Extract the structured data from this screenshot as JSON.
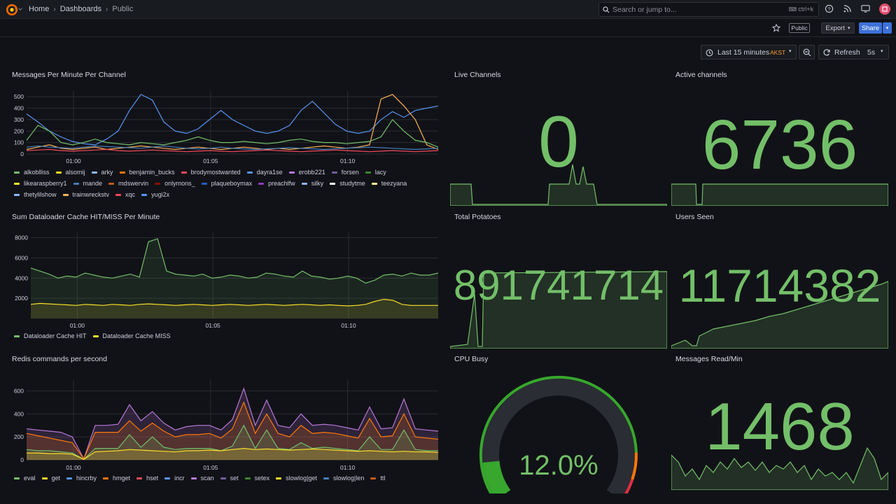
{
  "header": {
    "breadcrumbs": [
      "Home",
      "Dashboards",
      "Public"
    ],
    "search_placeholder": "Search or jump to...",
    "search_shortcut": "ctrl+k"
  },
  "toolbar": {
    "public_label": "Public",
    "export_label": "Export",
    "share_label": "Share",
    "time_range": "Last 15 minutes",
    "timezone": "AKST",
    "refresh_label": "Refresh",
    "refresh_interval": "5s"
  },
  "colors": {
    "green": "#73bf69",
    "yellow": "#fade2a",
    "accent_blue": "#3d71d9"
  },
  "panels": {
    "messages_per_minute": {
      "title": "Messages Per Minute Per Channel",
      "legend": [
        {
          "name": "alkoblliss",
          "color": "#73bf69"
        },
        {
          "name": "alsomij",
          "color": "#fade2a"
        },
        {
          "name": "arky",
          "color": "#8ab8ff"
        },
        {
          "name": "benjamin_bucks",
          "color": "#ff780a"
        },
        {
          "name": "brodymostwanted",
          "color": "#f2495c"
        },
        {
          "name": "dayra1se",
          "color": "#5794f2"
        },
        {
          "name": "erobb221",
          "color": "#b877d9"
        },
        {
          "name": "forsen",
          "color": "#705da0"
        },
        {
          "name": "lacy",
          "color": "#37872d"
        },
        {
          "name": "likearaspberry1",
          "color": "#fade2a"
        },
        {
          "name": "mande",
          "color": "#447ebc"
        },
        {
          "name": "mdswervin",
          "color": "#c15c17"
        },
        {
          "name": "onlymons_",
          "color": "#890f02"
        },
        {
          "name": "plaqueboymax",
          "color": "#1f60c4"
        },
        {
          "name": "preachlfw",
          "color": "#8f3bb8"
        },
        {
          "name": "silky",
          "color": "#8ab8ff"
        },
        {
          "name": "studytme",
          "color": "#ffffff"
        },
        {
          "name": "teezyana",
          "color": "#fff899"
        },
        {
          "name": "thetylilshow",
          "color": "#8ab8ff"
        },
        {
          "name": "trainwreckstv",
          "color": "#ffb357"
        },
        {
          "name": "xqc",
          "color": "#f2495c"
        },
        {
          "name": "yugi2x",
          "color": "#5794f2"
        }
      ]
    },
    "dataloader": {
      "title": "Sum Dataloader Cache HIT/MISS Per Minute",
      "legend": [
        {
          "name": "Dataloader Cache HIT",
          "color": "#73bf69"
        },
        {
          "name": "Dataloader Cache MISS",
          "color": "#fade2a"
        }
      ]
    },
    "redis": {
      "title": "Redis commands per second",
      "legend": [
        {
          "name": "eval",
          "color": "#73bf69"
        },
        {
          "name": "get",
          "color": "#fade2a"
        },
        {
          "name": "hincrby",
          "color": "#5794f2"
        },
        {
          "name": "hmget",
          "color": "#ff780a"
        },
        {
          "name": "hset",
          "color": "#f2495c"
        },
        {
          "name": "incr",
          "color": "#5794f2"
        },
        {
          "name": "scan",
          "color": "#b877d9"
        },
        {
          "name": "set",
          "color": "#705da0"
        },
        {
          "name": "setex",
          "color": "#37872d"
        },
        {
          "name": "slowlog|get",
          "color": "#fade2a"
        },
        {
          "name": "slowlog|len",
          "color": "#447ebc"
        },
        {
          "name": "ttl",
          "color": "#c15c17"
        }
      ]
    },
    "live_channels": {
      "title": "Live Channels",
      "value": "0"
    },
    "active_channels": {
      "title": "Active channels",
      "value": "6736"
    },
    "total_potatoes": {
      "title": "Total Potatoes",
      "value": "891741714"
    },
    "users_seen": {
      "title": "Users Seen",
      "value": "11714382"
    },
    "cpu_busy": {
      "title": "CPU Busy",
      "value": "12.0%",
      "fraction": 0.12
    },
    "messages_read": {
      "title": "Messages Read/Min",
      "value": "1468"
    }
  },
  "chart_data": [
    {
      "type": "line",
      "title": "Messages Per Minute Per Channel",
      "x_ticks": [
        "01:00",
        "01:05",
        "01:10"
      ],
      "y_ticks": [
        "0",
        "100",
        "200",
        "300",
        "400",
        "500"
      ],
      "ylim": [
        0,
        550
      ],
      "series": [
        {
          "name": "dayra1se",
          "values": [
            350,
            280,
            200,
            150,
            110,
            90,
            80,
            130,
            200,
            380,
            520,
            470,
            280,
            200,
            180,
            220,
            300,
            380,
            300,
            250,
            200,
            180,
            200,
            250,
            380,
            460,
            360,
            260,
            200,
            180,
            200,
            300,
            370,
            320,
            380,
            400,
            420
          ]
        },
        {
          "name": "trainwreckstv",
          "values": [
            40,
            60,
            80,
            50,
            40,
            50,
            60,
            40,
            50,
            60,
            70,
            60,
            50,
            40,
            50,
            60,
            50,
            40,
            50,
            60,
            50,
            40,
            50,
            40,
            50,
            60,
            70,
            60,
            50,
            60,
            80,
            480,
            520,
            420,
            300,
            80,
            40
          ]
        },
        {
          "name": "alkoblliss",
          "values": [
            120,
            250,
            200,
            100,
            80,
            100,
            130,
            100,
            90,
            80,
            100,
            90,
            80,
            100,
            120,
            150,
            120,
            100,
            100,
            110,
            100,
            90,
            100,
            120,
            130,
            110,
            100,
            100,
            90,
            100,
            110,
            150,
            300,
            200,
            120,
            100,
            60
          ]
        },
        {
          "name": "mande",
          "values": [
            60,
            70,
            60,
            55,
            50,
            60,
            70,
            65,
            60,
            55,
            50,
            60,
            70,
            60,
            50,
            45,
            50,
            60,
            50,
            45,
            40,
            45,
            50,
            55,
            50,
            45,
            40,
            45,
            50,
            55,
            60,
            55,
            50,
            45,
            40,
            45,
            50
          ]
        },
        {
          "name": "xqc",
          "values": [
            30,
            35,
            40,
            30,
            25,
            30,
            35,
            40,
            30,
            25,
            30,
            35,
            30,
            25,
            20,
            25,
            30,
            25,
            20,
            25,
            30,
            35,
            30,
            25,
            20,
            25,
            30,
            35,
            30,
            25,
            20,
            25,
            30,
            25,
            20,
            25,
            30
          ]
        }
      ]
    },
    {
      "type": "area",
      "title": "Sum Dataloader Cache HIT/MISS Per Minute",
      "x_ticks": [
        "01:00",
        "01:05",
        "01:10"
      ],
      "y_ticks": [
        "2000",
        "4000",
        "6000",
        "8000"
      ],
      "ylim": [
        0,
        8600
      ],
      "series": [
        {
          "name": "Dataloader Cache HIT",
          "values": [
            5000,
            4700,
            4400,
            4000,
            4200,
            4100,
            4500,
            4300,
            4100,
            4000,
            4200,
            4400,
            4100,
            7600,
            7900,
            4700,
            4400,
            4300,
            4200,
            4400,
            4000,
            4100,
            4300,
            4200,
            4000,
            4100,
            4500,
            4400,
            4200,
            4100,
            4700,
            4200,
            4100,
            3900,
            4000,
            4200,
            4000,
            3500,
            3800,
            4300,
            4400,
            4200,
            4500,
            4300,
            4300,
            4500
          ]
        },
        {
          "name": "Dataloader Cache MISS",
          "values": [
            1400,
            1500,
            1450,
            1400,
            1350,
            1300,
            1400,
            1350,
            1300,
            1400,
            1350,
            1300,
            1400,
            1450,
            1400,
            1350,
            1300,
            1350,
            1400,
            1350,
            1300,
            1350,
            1400,
            1350,
            1300,
            1350,
            1400,
            1350,
            1300,
            1350,
            1400,
            1350,
            1300,
            1350,
            1300,
            1250,
            1300,
            1400,
            1700,
            1900,
            1800,
            1400,
            1300,
            1300,
            1300,
            1300
          ]
        }
      ]
    },
    {
      "type": "area",
      "title": "Redis commands per second",
      "x_ticks": [
        "01:00",
        "01:05",
        "01:10"
      ],
      "y_ticks": [
        "0",
        "200",
        "400",
        "600"
      ],
      "ylim": [
        0,
        700
      ],
      "series": [
        {
          "name": "scan",
          "values": [
            270,
            260,
            250,
            240,
            200,
            10,
            300,
            300,
            310,
            480,
            340,
            420,
            320,
            260,
            290,
            300,
            300,
            260,
            350,
            620,
            300,
            520,
            300,
            280,
            400,
            300,
            310,
            300,
            280,
            260,
            460,
            270,
            280,
            530,
            270,
            260,
            250
          ]
        },
        {
          "name": "hmget",
          "values": [
            230,
            210,
            190,
            170,
            150,
            10,
            240,
            240,
            240,
            340,
            250,
            320,
            250,
            200,
            220,
            220,
            230,
            190,
            270,
            500,
            230,
            400,
            230,
            200,
            300,
            230,
            240,
            230,
            210,
            190,
            360,
            200,
            210,
            400,
            200,
            190,
            180
          ]
        },
        {
          "name": "eval",
          "values": [
            90,
            80,
            80,
            70,
            60,
            5,
            100,
            100,
            100,
            220,
            110,
            200,
            110,
            90,
            100,
            100,
            100,
            80,
            120,
            300,
            100,
            260,
            100,
            90,
            150,
            100,
            110,
            100,
            90,
            80,
            200,
            90,
            90,
            260,
            90,
            80,
            80
          ]
        },
        {
          "name": "get",
          "values": [
            60,
            60,
            55,
            55,
            50,
            5,
            70,
            75,
            80,
            90,
            85,
            80,
            75,
            70,
            80,
            80,
            85,
            80,
            90,
            100,
            90,
            95,
            90,
            85,
            90,
            95,
            90,
            85,
            80,
            75,
            80,
            75,
            70,
            75,
            70,
            70,
            65
          ]
        }
      ]
    }
  ]
}
